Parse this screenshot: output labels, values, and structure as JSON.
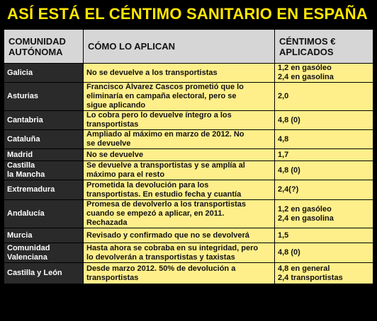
{
  "title": "ASÍ ESTÁ EL CÉNTIMO SANITARIO EN ESPAÑA",
  "headers": {
    "region": "COMUNIDAD\nAUTÓNOMA",
    "how": "CÓMO LO APLICAN",
    "cents": "CÉNTIMOS €\nAPLICADOS"
  },
  "rows": [
    {
      "region": "Galicia",
      "how": "No se devuelve a los transportistas",
      "cents": "1,2 en gasóleo\n2,4 en gasolina"
    },
    {
      "region": "Asturias",
      "how": "Francisco Álvarez Cascos prometió que lo\neliminaría en campaña electoral, pero se\nsigue aplicando",
      "cents": "2,0"
    },
    {
      "region": "Cantabria",
      "how": "Lo cobra pero lo devuelve íntegro a los\ntransportistas",
      "cents": "4,8 (0)"
    },
    {
      "region": "Cataluña",
      "how": "Ampliado al máximo en marzo de 2012. No\nse devuelve",
      "cents": "4,8"
    },
    {
      "region": "Madrid",
      "how": "No se devuelve",
      "cents": "1,7"
    },
    {
      "region": "Castilla\nla Mancha",
      "how": "Se devuelve a transportistas y se amplía al\nmáximo para el resto",
      "cents": "4,8 (0)"
    },
    {
      "region": "Extremadura",
      "how": "Prometida la devolución para los\ntransportistas. En estudio fecha y cuantía",
      "cents": "2,4(?)"
    },
    {
      "region": "Andalucía",
      "how": "Promesa de devolverlo a los transportistas\ncuando se empezó a aplicar, en 2011.\nRechazada",
      "cents": "1,2 en gasóleo\n2,4 en gasolina"
    },
    {
      "region": "Murcia",
      "how": "Revisado y confirmado que no se devolverá",
      "cents": "1,5"
    },
    {
      "region": "Comunidad\nValenciana",
      "how": "Hasta ahora se cobraba en su integridad, pero\nlo devolverán a transportistas y taxistas",
      "cents": "4,8 (0)"
    },
    {
      "region": "Castilla y León",
      "how": "Desde marzo 2012. 50% de devolución a\ntransportistas",
      "cents": "4,8 en general\n2,4 transportistas"
    }
  ]
}
